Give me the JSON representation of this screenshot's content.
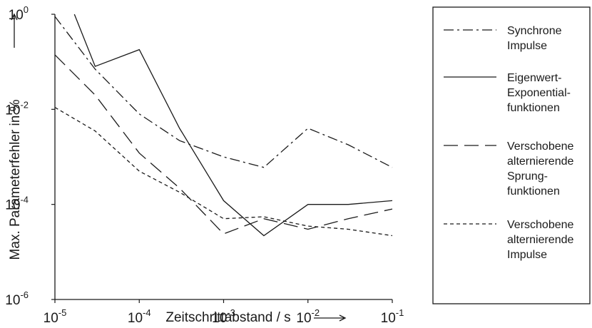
{
  "chart_data": {
    "type": "line",
    "xlabel": "Zeitschrittabstand / s",
    "ylabel": "Max. Parameterfehler in %",
    "x_scale": "log",
    "y_scale": "log",
    "xlim": [
      1e-05,
      0.1
    ],
    "ylim": [
      1e-06,
      1
    ],
    "x_ticks": [
      {
        "value": 1e-05,
        "base": "10",
        "exp": "-5"
      },
      {
        "value": 0.0001,
        "base": "10",
        "exp": "-4"
      },
      {
        "value": 0.001,
        "base": "10",
        "exp": "-3"
      },
      {
        "value": 0.01,
        "base": "10",
        "exp": "-2"
      },
      {
        "value": 0.1,
        "base": "10",
        "exp": "-1"
      }
    ],
    "y_ticks": [
      {
        "value": 1,
        "base": "10",
        "exp": "0"
      },
      {
        "value": 0.01,
        "base": "10",
        "exp": "-2"
      },
      {
        "value": 0.0001,
        "base": "10",
        "exp": "-4"
      },
      {
        "value": 1e-06,
        "base": "10",
        "exp": "-6"
      }
    ],
    "grid": false,
    "legend_position": "right",
    "series": [
      {
        "name": "Synchrone Impulse",
        "legend_lines": [
          "Synchrone",
          "Impulse"
        ],
        "dash": "dashdot",
        "points": [
          [
            1e-05,
            0.9
          ],
          [
            3e-05,
            0.07
          ],
          [
            0.0001,
            0.008
          ],
          [
            0.0003,
            0.0022
          ],
          [
            0.001,
            0.001
          ],
          [
            0.003,
            0.0006
          ],
          [
            0.01,
            0.004
          ],
          [
            0.03,
            0.0018
          ],
          [
            0.1,
            0.0006
          ]
        ]
      },
      {
        "name": "Eigenwert-Exponentialfunktionen",
        "legend_lines": [
          "Eigenwert-",
          "Exponential-",
          "funktionen"
        ],
        "dash": "solid",
        "points": [
          [
            1.7e-05,
            1.0
          ],
          [
            3e-05,
            0.08
          ],
          [
            0.0001,
            0.18
          ],
          [
            0.0003,
            0.004
          ],
          [
            0.001,
            0.00012
          ],
          [
            0.003,
            2.2e-05
          ],
          [
            0.01,
            0.0001
          ],
          [
            0.03,
            0.0001
          ],
          [
            0.1,
            0.00012
          ]
        ]
      },
      {
        "name": "Verschobene alternierende Sprungfunktionen",
        "legend_lines": [
          "Verschobene",
          "alternierende",
          "Sprung-",
          "funktionen"
        ],
        "dash": "longdash",
        "points": [
          [
            1e-05,
            0.14
          ],
          [
            3e-05,
            0.02
          ],
          [
            0.0001,
            0.0012
          ],
          [
            0.0003,
            0.00022
          ],
          [
            0.001,
            2.4e-05
          ],
          [
            0.003,
            5e-05
          ],
          [
            0.01,
            3e-05
          ],
          [
            0.03,
            5e-05
          ],
          [
            0.1,
            8e-05
          ]
        ]
      },
      {
        "name": "Verschobene alternierende Impulse",
        "legend_lines": [
          "Verschobene",
          "alternierende",
          "Impulse"
        ],
        "dash": "shortdash",
        "points": [
          [
            1e-05,
            0.011
          ],
          [
            3e-05,
            0.0035
          ],
          [
            0.0001,
            0.0005
          ],
          [
            0.0003,
            0.00018
          ],
          [
            0.001,
            5e-05
          ],
          [
            0.003,
            5.5e-05
          ],
          [
            0.01,
            3.5e-05
          ],
          [
            0.03,
            3e-05
          ],
          [
            0.1,
            2.2e-05
          ]
        ]
      }
    ]
  }
}
